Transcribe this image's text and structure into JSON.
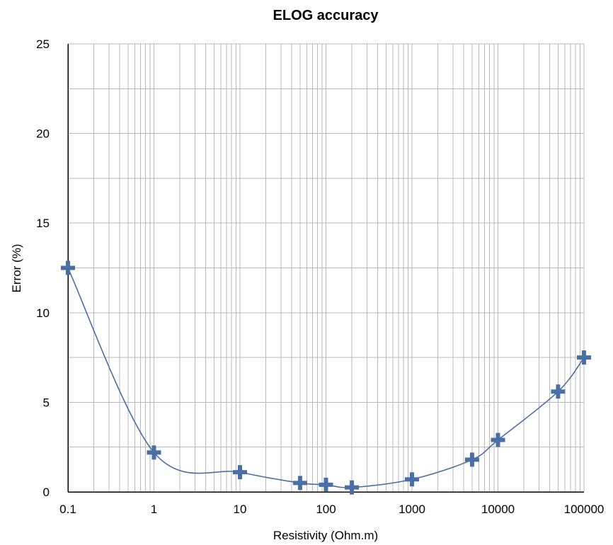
{
  "chart_data": {
    "type": "scatter",
    "title": "ELOG accuracy",
    "xlabel": "Resistivity (Ohm.m)",
    "ylabel": "Error (%)",
    "xscale": "log",
    "xlim": [
      0.1,
      100000
    ],
    "ylim": [
      0,
      25
    ],
    "x_ticks": [
      "0.1",
      "1",
      "10",
      "100",
      "1000",
      "10000",
      "100000"
    ],
    "y_ticks": [
      "0",
      "5",
      "10",
      "15",
      "20",
      "25"
    ],
    "y_minor_step": 2.5,
    "grid": true,
    "line": "smooth",
    "marker": "plus",
    "color": "#4a6fa5",
    "series": [
      {
        "x": [
          0.1,
          1,
          10,
          50,
          100,
          200,
          1000,
          5000,
          10000,
          50000,
          100000
        ],
        "y": [
          12.5,
          2.2,
          1.1,
          0.5,
          0.4,
          0.25,
          0.7,
          1.8,
          2.9,
          5.6,
          7.5
        ]
      }
    ]
  }
}
